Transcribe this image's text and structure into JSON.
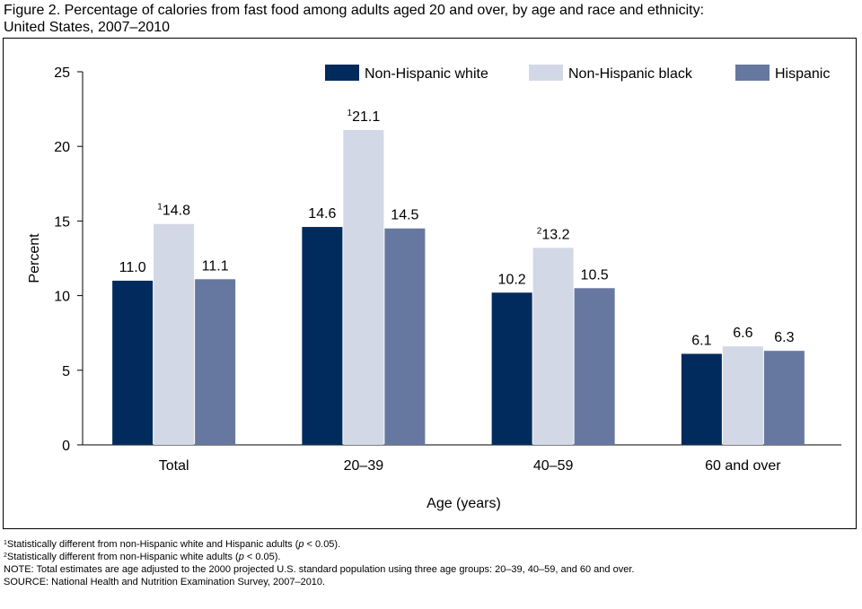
{
  "title_line1": "Figure 2. Percentage of calories from fast food among adults aged 20 and over, by age and race and ethnicity:",
  "title_line2": "United States, 2007–2010",
  "chart_data": {
    "type": "bar",
    "title": "Percentage of calories from fast food among adults aged 20 and over, by age and race and ethnicity: United States, 2007–2010",
    "xlabel": "Age (years)",
    "ylabel": "Percent",
    "ylim": [
      0,
      25
    ],
    "yticks": [
      0,
      5,
      10,
      15,
      20,
      25
    ],
    "categories": [
      "Total",
      "20–39",
      "40–59",
      "60 and over"
    ],
    "legend_position": "top-right",
    "grid": false,
    "series": [
      {
        "name": "Non-Hispanic white",
        "color": "#002b5c",
        "values": [
          11.0,
          14.6,
          10.2,
          6.1
        ],
        "labels": [
          "11.0",
          "14.6",
          "10.2",
          "6.1"
        ],
        "superscripts": [
          "",
          "",
          "",
          ""
        ]
      },
      {
        "name": "Non-Hispanic black",
        "color": "#d2d8e6",
        "values": [
          14.8,
          21.1,
          13.2,
          6.6
        ],
        "labels": [
          "14.8",
          "21.1",
          "13.2",
          "6.6"
        ],
        "superscripts": [
          "1",
          "1",
          "2",
          ""
        ]
      },
      {
        "name": "Hispanic",
        "color": "#66789f",
        "values": [
          11.1,
          14.5,
          10.5,
          6.3
        ],
        "labels": [
          "11.1",
          "14.5",
          "10.5",
          "6.3"
        ],
        "superscripts": [
          "",
          "",
          "",
          ""
        ]
      }
    ]
  },
  "footnotes": {
    "fn1": {
      "marker": "1",
      "text_before": "Statistically different from non-Hispanic white and Hispanic adults (",
      "p": "p",
      "text_after": " < 0.05)."
    },
    "fn2": {
      "marker": "2",
      "text_before": "Statistically different from non-Hispanic white adults (",
      "p": "p",
      "text_after": " < 0.05)."
    },
    "note": "NOTE: Total estimates are age adjusted to the 2000 projected U.S. standard population using three age groups: 20–39, 40–59, and 60 and over.",
    "source": "SOURCE: National Health and Nutrition Examination Survey, 2007–2010."
  }
}
